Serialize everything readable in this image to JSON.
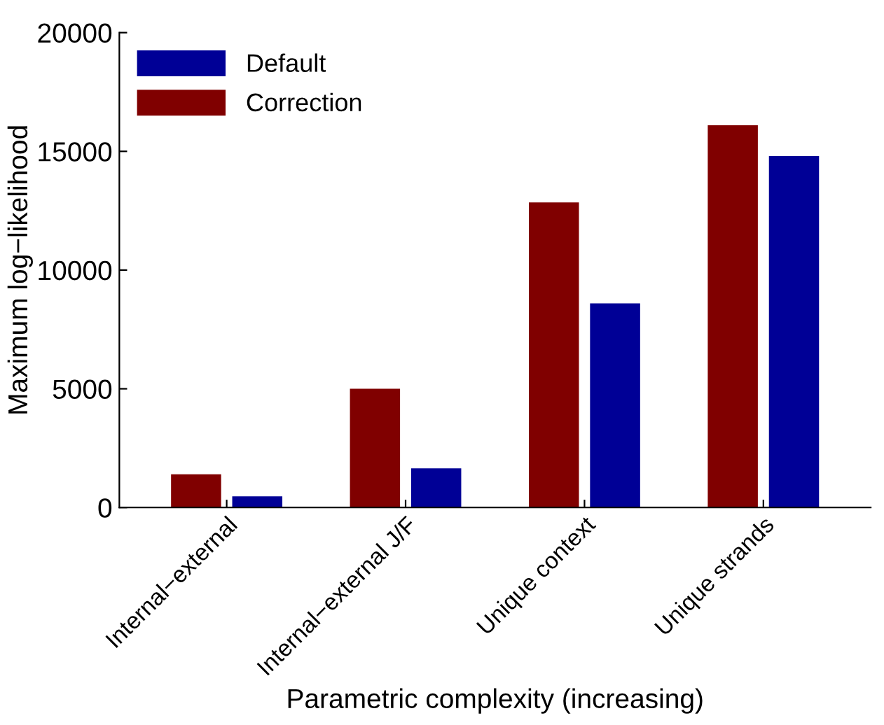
{
  "chart_data": {
    "type": "bar",
    "xlabel": "Parametric complexity (increasing)",
    "ylabel": "Maximum log−likelihood",
    "categories": [
      "Internal−external",
      "Internal−external J/F",
      "Unique context",
      "Unique strands"
    ],
    "series": [
      {
        "name": "Correction",
        "color": "#800000",
        "values": [
          1400,
          5000,
          12850,
          16100
        ]
      },
      {
        "name": "Default",
        "color": "#000096",
        "values": [
          470,
          1650,
          8600,
          14800
        ]
      }
    ],
    "ylim": [
      0,
      20000
    ],
    "yticks": [
      0,
      5000,
      10000,
      15000,
      20000
    ],
    "grid": false,
    "legend": "top left"
  }
}
